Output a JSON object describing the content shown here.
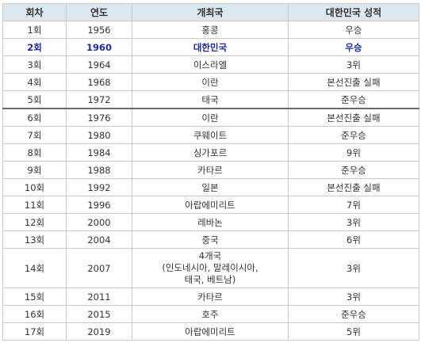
{
  "headers": [
    "회차",
    "연도",
    "개최국",
    "대한민국 성적"
  ],
  "rows": [
    {
      "round": "1회",
      "year": "1956",
      "host": "홍콩",
      "result": "우승"
    },
    {
      "round": "2회",
      "year": "1960",
      "host": "대한민국",
      "result": "우승"
    },
    {
      "round": "3회",
      "year": "1964",
      "host": "이스라엘",
      "result": "3위"
    },
    {
      "round": "4회",
      "year": "1968",
      "host": "이란",
      "result": "본선진출 실패"
    },
    {
      "round": "5회",
      "year": "1972",
      "host": "태국",
      "result": "준우승"
    },
    {
      "round": "6회",
      "year": "1976",
      "host": "이란",
      "result": "본선진출 실패"
    },
    {
      "round": "7회",
      "year": "1980",
      "host": "쿠웨이트",
      "result": "준우승"
    },
    {
      "round": "8회",
      "year": "1984",
      "host": "싱가포르",
      "result": "9위"
    },
    {
      "round": "9회",
      "year": "1988",
      "host": "카타르",
      "result": "준우승"
    },
    {
      "round": "10회",
      "year": "1992",
      "host": "일본",
      "result": "본선진출 실패"
    },
    {
      "round": "11회",
      "year": "1996",
      "host": "아랍에미리트",
      "result": "7위"
    },
    {
      "round": "12회",
      "year": "2000",
      "host": "레바논",
      "result": "3위"
    },
    {
      "round": "13회",
      "year": "2004",
      "host": "중국",
      "result": "6위"
    },
    {
      "round": "14회",
      "year": "2007",
      "host": "4개국\n(인도네시아, 말레이시아,\n태국, 베트남)",
      "result": "3위"
    },
    {
      "round": "15회",
      "year": "2011",
      "host": "카타르",
      "result": "3위"
    },
    {
      "round": "16회",
      "year": "2015",
      "host": "호주",
      "result": "준우승"
    },
    {
      "round": "17회",
      "year": "2019",
      "host": "아랍에미리트",
      "result": "5위"
    }
  ],
  "colors": {
    "header_bg": "#dde7f0",
    "highlight_text": "#1f2b9a",
    "border": "#c9c9c9"
  }
}
